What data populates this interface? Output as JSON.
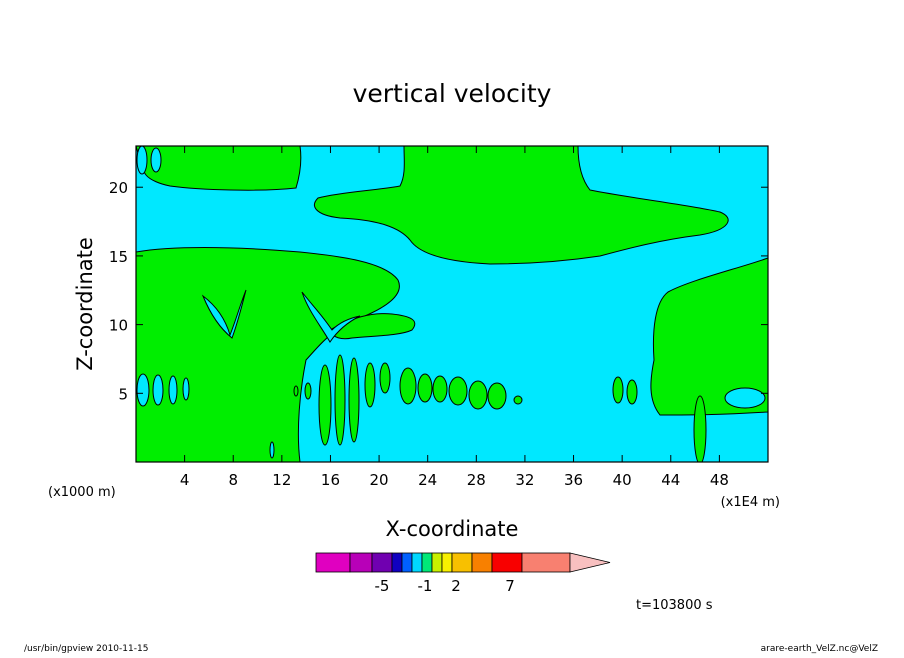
{
  "chart_data": {
    "type": "heatmap",
    "title": "vertical velocity",
    "xlabel": "X-coordinate",
    "ylabel": "Z-coordinate",
    "x_unit_left": "(x1000 m)",
    "x_unit_right": "(x1E4 m)",
    "xlim": [
      0,
      52
    ],
    "ylim": [
      0,
      23
    ],
    "x_ticks": [
      "4",
      "8",
      "12",
      "16",
      "20",
      "24",
      "28",
      "32",
      "36",
      "40",
      "44",
      "48"
    ],
    "x_tick_values": [
      4,
      8,
      12,
      16,
      20,
      24,
      28,
      32,
      36,
      40,
      44,
      48
    ],
    "y_ticks": [
      "5",
      "10",
      "15",
      "20"
    ],
    "y_tick_values": [
      5,
      10,
      15,
      20
    ],
    "colors": {
      "negative_region": "#00e8ff",
      "positive_region": "#00ee00"
    },
    "colorbar": {
      "colors": [
        "#e000c0",
        "#b800b8",
        "#7000b0",
        "#1000c0",
        "#0060ff",
        "#00d8ff",
        "#00e878",
        "#c8f000",
        "#f8f000",
        "#f8c000",
        "#f88000",
        "#f80000",
        "#f88070",
        "#f8c0c0"
      ],
      "labels": [
        "-5",
        "-1",
        "2",
        "7"
      ],
      "label_values": [
        -5,
        -1,
        2,
        7
      ]
    },
    "time_label": "t=103800 s"
  },
  "footer": {
    "left": "/usr/bin/gpview   2010-11-15",
    "right": "arare-earth_VelZ.nc@VelZ"
  }
}
